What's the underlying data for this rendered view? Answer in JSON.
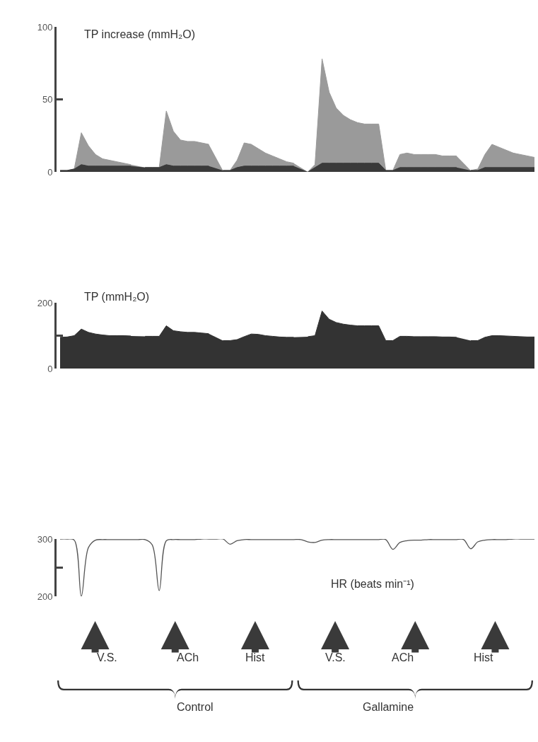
{
  "chart_data": [
    {
      "type": "area",
      "title": "TP increase (mmH₂O)",
      "categories": [
        null,
        null,
        null,
        null,
        null,
        null,
        null,
        null,
        null,
        null,
        null,
        null,
        null,
        null,
        null,
        null,
        null,
        null,
        null,
        null,
        null,
        null,
        null,
        null,
        null,
        null,
        null,
        null,
        null,
        null,
        null,
        null,
        null,
        null,
        null,
        null,
        null,
        null,
        null,
        null,
        null,
        null,
        null,
        null,
        null,
        null,
        null,
        null,
        null,
        null,
        null,
        null,
        null,
        null,
        null,
        null,
        null,
        null,
        null,
        null,
        null,
        null,
        null,
        null,
        null,
        null,
        null,
        null
      ],
      "series": [
        {
          "color": "#9a9a9a",
          "values": [
            1,
            1,
            2,
            27,
            18,
            12,
            9,
            8,
            7,
            6,
            5,
            null,
            3,
            3,
            3,
            42,
            28,
            22,
            21,
            21,
            20,
            19,
            null,
            1,
            1,
            8,
            20,
            19,
            16,
            13,
            11,
            9,
            7,
            6,
            null,
            0,
            5,
            78,
            55,
            44,
            39,
            36,
            34,
            33,
            33,
            33,
            1,
            1,
            12,
            13,
            12,
            12,
            12,
            12,
            11,
            11,
            11,
            null,
            1,
            2,
            12,
            19,
            17,
            15,
            13,
            12,
            11,
            10
          ]
        },
        {
          "color": "#3a3a3a",
          "values": [
            1,
            1,
            2,
            5,
            4,
            4,
            4,
            4,
            4,
            4,
            4,
            null,
            3,
            3,
            3,
            5,
            4,
            4,
            4,
            4,
            4,
            4,
            null,
            1,
            1,
            3,
            4,
            4,
            4,
            4,
            4,
            4,
            4,
            4,
            null,
            0,
            3,
            6,
            6,
            6,
            6,
            6,
            6,
            6,
            6,
            6,
            1,
            1,
            3,
            3,
            3,
            3,
            3,
            3,
            3,
            3,
            3,
            null,
            1,
            1,
            3,
            3,
            3,
            3,
            3,
            3,
            3,
            3
          ]
        }
      ],
      "ylim": [
        0,
        100
      ],
      "yticks": [
        0,
        50,
        100
      ],
      "tick_labels": "y"
    },
    {
      "type": "area",
      "title": "TP (mmH₂O)",
      "categories": [
        null,
        null,
        null,
        null,
        null,
        null,
        null,
        null,
        null,
        null,
        null,
        null,
        null,
        null,
        null,
        null,
        null,
        null,
        null,
        null,
        null,
        null,
        null,
        null,
        null,
        null,
        null,
        null,
        null,
        null,
        null,
        null,
        null,
        null,
        null,
        null,
        null,
        null,
        null,
        null,
        null,
        null,
        null,
        null,
        null,
        null,
        null,
        null,
        null,
        null,
        null,
        null,
        null,
        null,
        null,
        null,
        null,
        null,
        null,
        null,
        null,
        null,
        null,
        null,
        null,
        null,
        null,
        null
      ],
      "series": [
        {
          "color": "#333333",
          "values": [
            95,
            96,
            100,
            120,
            110,
            105,
            102,
            100,
            100,
            100,
            99,
            null,
            98,
            98,
            98,
            130,
            115,
            112,
            110,
            110,
            108,
            106,
            null,
            85,
            85,
            88,
            97,
            105,
            104,
            100,
            98,
            96,
            95,
            95,
            null,
            97,
            100,
            175,
            150,
            140,
            135,
            132,
            130,
            130,
            130,
            130,
            85,
            85,
            98,
            98,
            97,
            97,
            97,
            97,
            96,
            96,
            95,
            null,
            85,
            85,
            95,
            100,
            100,
            99,
            98,
            97,
            96,
            96
          ]
        }
      ],
      "ylim": [
        0,
        200
      ],
      "yticks": [
        0,
        {
          "value": 100,
          "label": null
        },
        200
      ],
      "tick_labels": "y"
    },
    {
      "type": "line",
      "title": "HR (beats min⁻¹)",
      "categories": [
        null,
        null,
        null,
        null,
        null,
        null,
        null,
        null,
        null,
        null,
        null,
        null,
        null,
        null,
        null,
        null,
        null,
        null,
        null,
        null,
        null,
        null,
        null,
        null,
        null,
        null,
        null,
        null,
        null,
        null,
        null,
        null,
        null,
        null,
        null,
        null,
        null,
        null,
        null,
        null,
        null,
        null,
        null,
        null,
        null,
        null,
        null,
        null,
        null,
        null,
        null,
        null,
        null,
        null,
        null,
        null,
        null,
        null,
        null,
        null,
        null,
        null,
        null,
        null,
        null,
        null,
        null,
        null
      ],
      "series": [
        {
          "color": "#555555",
          "values": [
            300,
            300,
            298,
            200,
            285,
            298,
            299,
            299,
            299,
            299,
            299,
            299,
            299,
            290,
            210,
            297,
            299,
            299,
            299,
            299,
            300,
            300,
            300,
            300,
            291,
            297,
            299,
            299,
            299,
            299,
            299,
            299,
            299,
            299,
            299,
            295,
            294,
            298,
            299,
            299,
            299,
            299,
            299,
            299,
            299,
            299,
            299,
            282,
            294,
            297,
            298,
            298,
            299,
            299,
            299,
            299,
            299,
            299,
            283,
            295,
            298,
            299,
            299,
            299,
            300,
            300,
            300,
            300
          ]
        }
      ],
      "ylim": [
        200,
        300
      ],
      "yticks": [
        200,
        {
          "value": 250,
          "label": null
        },
        300
      ],
      "tick_labels": "y",
      "marker": "none",
      "line_style": "solid",
      "annotations": [
        "V.S.",
        "ACh",
        "Hist",
        "V.S.",
        "ACh",
        "Hist",
        "Control",
        "Gallamine"
      ]
    }
  ]
}
